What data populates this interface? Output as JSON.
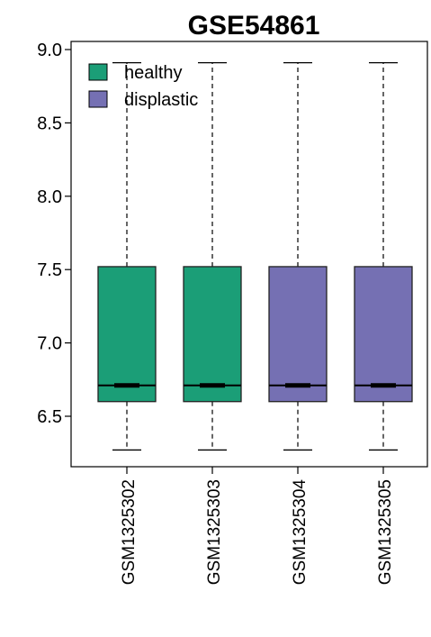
{
  "chart_data": {
    "type": "boxplot",
    "title": "GSE54861",
    "xlabel": "",
    "ylabel": "",
    "ylim": [
      6.2,
      9.0
    ],
    "yticks": [
      6.5,
      7.0,
      7.5,
      8.0,
      8.5,
      9.0
    ],
    "ytick_labels": [
      "6.5",
      "7.0",
      "7.5",
      "8.0",
      "8.5",
      "9.0"
    ],
    "categories": [
      "GSM1325302",
      "GSM1325303",
      "GSM1325304",
      "GSM1325305"
    ],
    "groups": [
      "healthy",
      "healthy",
      "displastic",
      "displastic"
    ],
    "boxes": [
      {
        "name": "GSM1325302",
        "whisker_low": 6.27,
        "q1": 6.6,
        "median": 6.71,
        "q3": 7.52,
        "whisker_high": 8.91
      },
      {
        "name": "GSM1325303",
        "whisker_low": 6.27,
        "q1": 6.6,
        "median": 6.71,
        "q3": 7.52,
        "whisker_high": 8.91
      },
      {
        "name": "GSM1325304",
        "whisker_low": 6.27,
        "q1": 6.6,
        "median": 6.71,
        "q3": 7.52,
        "whisker_high": 8.91
      },
      {
        "name": "GSM1325305",
        "whisker_low": 6.27,
        "q1": 6.6,
        "median": 6.71,
        "q3": 7.52,
        "whisker_high": 8.91
      }
    ],
    "legend": {
      "position": "top-left",
      "entries": [
        {
          "label": "healthy",
          "color": "#1b9e77"
        },
        {
          "label": "displastic",
          "color": "#7570b3"
        }
      ]
    },
    "colors": {
      "healthy": "#1b9e77",
      "displastic": "#7570b3"
    },
    "grid": false
  }
}
